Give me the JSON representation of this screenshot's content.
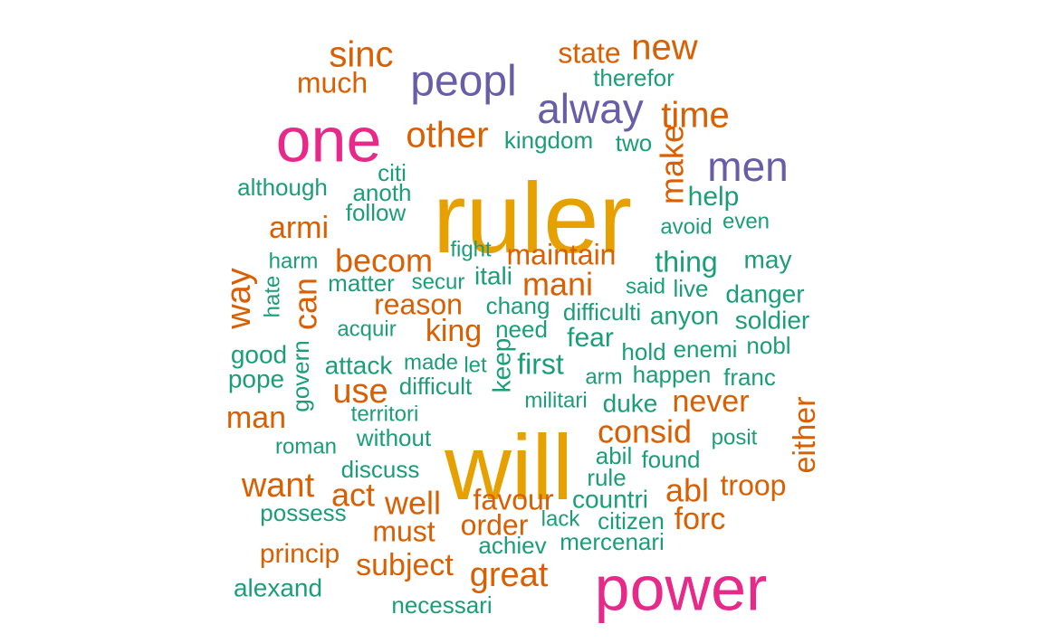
{
  "chart_data": {
    "type": "wordcloud",
    "words": [
      {
        "text": "ruler",
        "color": "#E6A000"
      },
      {
        "text": "will",
        "color": "#E6A000"
      },
      {
        "text": "power",
        "color": "#E7298A"
      },
      {
        "text": "one",
        "color": "#E7298A"
      },
      {
        "text": "peopl",
        "color": "#6A5DA8"
      },
      {
        "text": "alway",
        "color": "#6A5DA8"
      },
      {
        "text": "men",
        "color": "#6A5DA8"
      },
      {
        "text": "sinc",
        "color": "#D95F02"
      },
      {
        "text": "much",
        "color": "#D95F02"
      },
      {
        "text": "state",
        "color": "#D95F02"
      },
      {
        "text": "new",
        "color": "#D95F02"
      },
      {
        "text": "therefor",
        "color": "#1B9E77"
      },
      {
        "text": "time",
        "color": "#D95F02"
      },
      {
        "text": "other",
        "color": "#D95F02"
      },
      {
        "text": "kingdom",
        "color": "#1B9E77"
      },
      {
        "text": "two",
        "color": "#1B9E77"
      },
      {
        "text": "make",
        "color": "#D95F02"
      },
      {
        "text": "help",
        "color": "#1B9E77"
      },
      {
        "text": "although",
        "color": "#1B9E77"
      },
      {
        "text": "citi",
        "color": "#1B9E77"
      },
      {
        "text": "anoth",
        "color": "#1B9E77"
      },
      {
        "text": "follow",
        "color": "#1B9E77"
      },
      {
        "text": "armi",
        "color": "#D95F02"
      },
      {
        "text": "avoid",
        "color": "#1B9E77"
      },
      {
        "text": "even",
        "color": "#1B9E77"
      },
      {
        "text": "harm",
        "color": "#1B9E77"
      },
      {
        "text": "becom",
        "color": "#D95F02"
      },
      {
        "text": "fight",
        "color": "#1B9E77"
      },
      {
        "text": "maintain",
        "color": "#D95F02"
      },
      {
        "text": "thing",
        "color": "#1B9E77"
      },
      {
        "text": "may",
        "color": "#1B9E77"
      },
      {
        "text": "way",
        "color": "#D95F02"
      },
      {
        "text": "can",
        "color": "#D95F02"
      },
      {
        "text": "matter",
        "color": "#1B9E77"
      },
      {
        "text": "secur",
        "color": "#1B9E77"
      },
      {
        "text": "itali",
        "color": "#1B9E77"
      },
      {
        "text": "mani",
        "color": "#D95F02"
      },
      {
        "text": "said",
        "color": "#1B9E77"
      },
      {
        "text": "live",
        "color": "#1B9E77"
      },
      {
        "text": "danger",
        "color": "#1B9E77"
      },
      {
        "text": "hate",
        "color": "#1B9E77"
      },
      {
        "text": "reason",
        "color": "#D95F02"
      },
      {
        "text": "chang",
        "color": "#1B9E77"
      },
      {
        "text": "difficulti",
        "color": "#1B9E77"
      },
      {
        "text": "anyon",
        "color": "#1B9E77"
      },
      {
        "text": "soldier",
        "color": "#1B9E77"
      },
      {
        "text": "acquir",
        "color": "#1B9E77"
      },
      {
        "text": "king",
        "color": "#D95F02"
      },
      {
        "text": "need",
        "color": "#1B9E77"
      },
      {
        "text": "fear",
        "color": "#1B9E77"
      },
      {
        "text": "hold",
        "color": "#1B9E77"
      },
      {
        "text": "enemi",
        "color": "#1B9E77"
      },
      {
        "text": "nobl",
        "color": "#1B9E77"
      },
      {
        "text": "good",
        "color": "#1B9E77"
      },
      {
        "text": "govern",
        "color": "#1B9E77"
      },
      {
        "text": "attack",
        "color": "#1B9E77"
      },
      {
        "text": "made",
        "color": "#1B9E77"
      },
      {
        "text": "let",
        "color": "#1B9E77"
      },
      {
        "text": "keep",
        "color": "#1B9E77"
      },
      {
        "text": "first",
        "color": "#1B9E77"
      },
      {
        "text": "arm",
        "color": "#1B9E77"
      },
      {
        "text": "happen",
        "color": "#1B9E77"
      },
      {
        "text": "franc",
        "color": "#1B9E77"
      },
      {
        "text": "pope",
        "color": "#1B9E77"
      },
      {
        "text": "use",
        "color": "#D95F02"
      },
      {
        "text": "difficult",
        "color": "#1B9E77"
      },
      {
        "text": "militari",
        "color": "#1B9E77"
      },
      {
        "text": "duke",
        "color": "#1B9E77"
      },
      {
        "text": "never",
        "color": "#D95F02"
      },
      {
        "text": "man",
        "color": "#D95F02"
      },
      {
        "text": "territori",
        "color": "#1B9E77"
      },
      {
        "text": "either",
        "color": "#D95F02"
      },
      {
        "text": "consid",
        "color": "#D95F02"
      },
      {
        "text": "posit",
        "color": "#1B9E77"
      },
      {
        "text": "without",
        "color": "#1B9E77"
      },
      {
        "text": "roman",
        "color": "#1B9E77"
      },
      {
        "text": "abil",
        "color": "#1B9E77"
      },
      {
        "text": "found",
        "color": "#1B9E77"
      },
      {
        "text": "discuss",
        "color": "#1B9E77"
      },
      {
        "text": "want",
        "color": "#D95F02"
      },
      {
        "text": "rule",
        "color": "#1B9E77"
      },
      {
        "text": "troop",
        "color": "#D95F02"
      },
      {
        "text": "act",
        "color": "#D95F02"
      },
      {
        "text": "well",
        "color": "#D95F02"
      },
      {
        "text": "favour",
        "color": "#D95F02"
      },
      {
        "text": "countri",
        "color": "#1B9E77"
      },
      {
        "text": "abl",
        "color": "#D95F02"
      },
      {
        "text": "possess",
        "color": "#1B9E77"
      },
      {
        "text": "forc",
        "color": "#D95F02"
      },
      {
        "text": "lack",
        "color": "#1B9E77"
      },
      {
        "text": "citizen",
        "color": "#1B9E77"
      },
      {
        "text": "order",
        "color": "#D95F02"
      },
      {
        "text": "must",
        "color": "#D95F02"
      },
      {
        "text": "achiev",
        "color": "#1B9E77"
      },
      {
        "text": "mercenari",
        "color": "#1B9E77"
      },
      {
        "text": "princip",
        "color": "#D95F02"
      },
      {
        "text": "subject",
        "color": "#D95F02"
      },
      {
        "text": "great",
        "color": "#D95F02"
      },
      {
        "text": "alexand",
        "color": "#1B9E77"
      },
      {
        "text": "necessari",
        "color": "#1B9E77"
      }
    ]
  }
}
